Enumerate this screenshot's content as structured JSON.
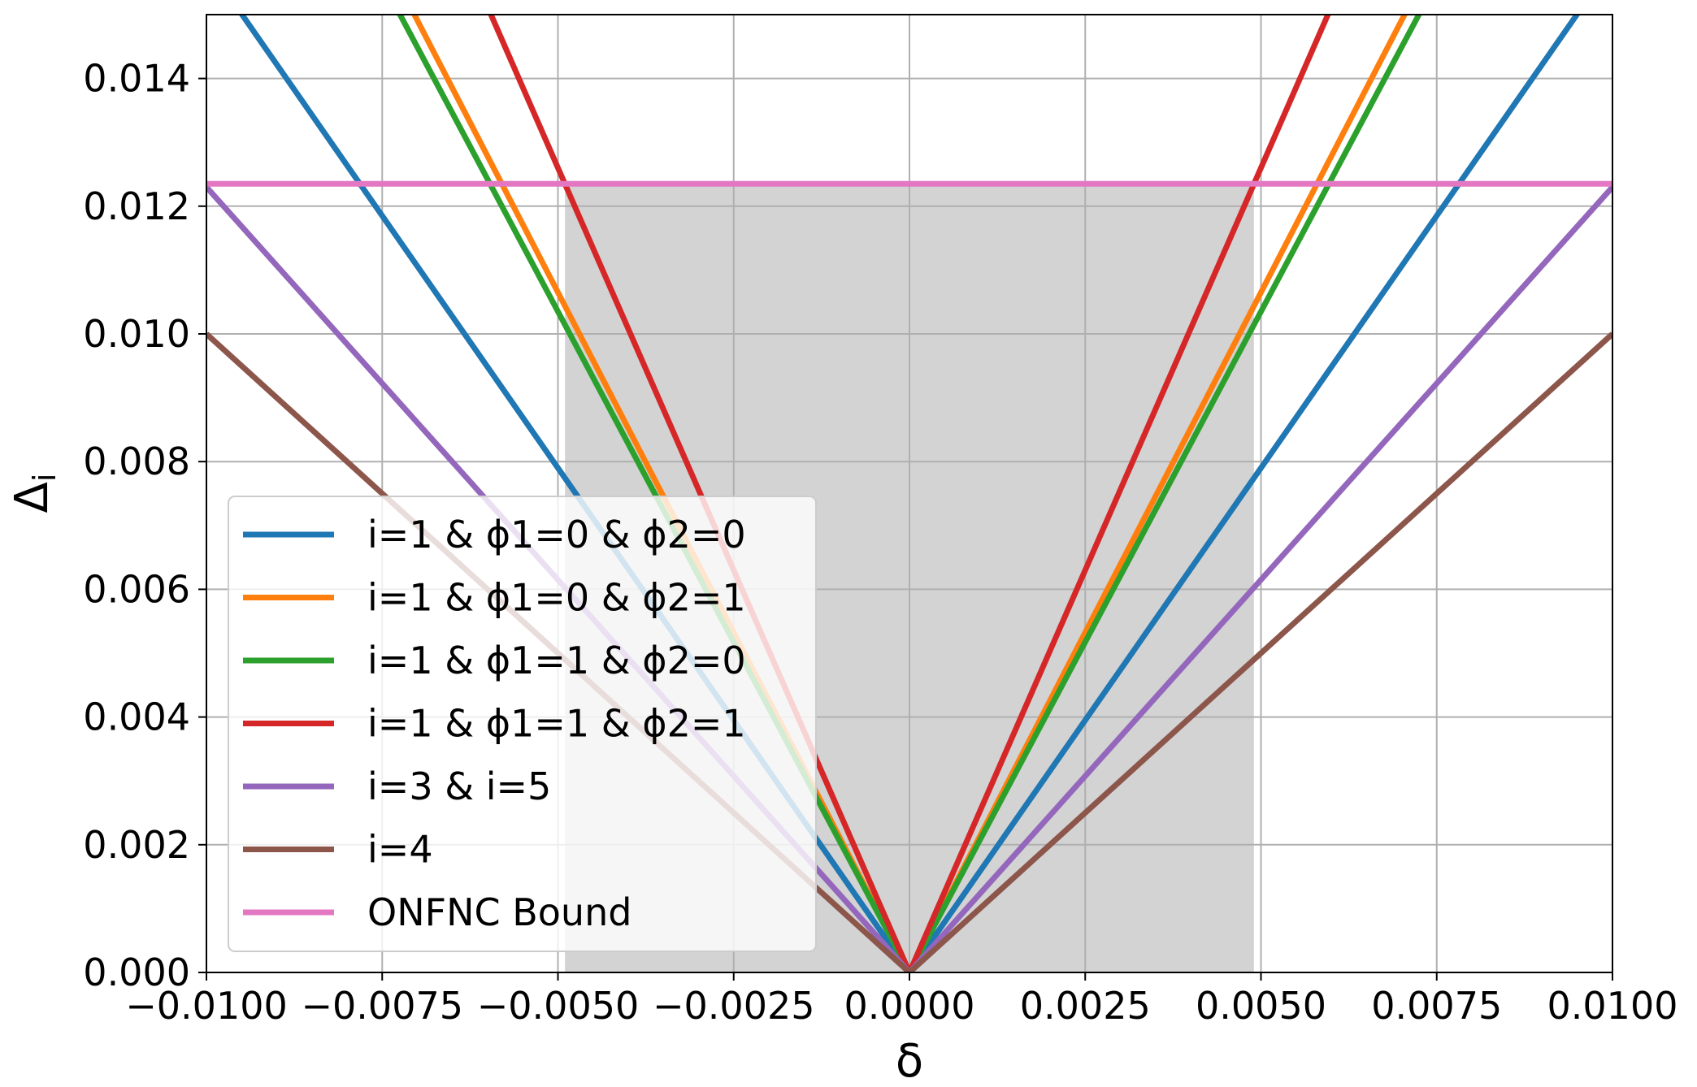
{
  "chart_data": {
    "type": "line",
    "xlabel": "δ",
    "ylabel_base": "Δ",
    "ylabel_sub": "i",
    "xlim": [
      -0.01,
      0.01
    ],
    "ylim": [
      0,
      0.015
    ],
    "grid": true,
    "legend_position": "lower-left",
    "x_ticks": [
      -0.01,
      -0.0075,
      -0.005,
      -0.0025,
      0.0,
      0.0025,
      0.005,
      0.0075,
      0.01
    ],
    "x_tick_labels": [
      "−0.0100",
      "−0.0075",
      "−0.0050",
      "−0.0025",
      "0.0000",
      "0.0025",
      "0.0050",
      "0.0075",
      "0.0100"
    ],
    "y_ticks": [
      0.0,
      0.002,
      0.004,
      0.006,
      0.008,
      0.01,
      0.012,
      0.014
    ],
    "y_tick_labels": [
      "0.000",
      "0.002",
      "0.004",
      "0.006",
      "0.008",
      "0.010",
      "0.012",
      "0.014"
    ],
    "shaded_region": {
      "x": [
        -0.0049,
        0.0049
      ],
      "y": [
        0,
        0.01235
      ],
      "color": "#d3d3d3"
    },
    "series": [
      {
        "name": "i=1 & ϕ1=0 & ϕ2=0",
        "color": "#1f77b4",
        "slope": 1.58
      },
      {
        "name": "i=1 & ϕ1=0 & ϕ2=1",
        "color": "#ff7f0e",
        "slope": 2.13
      },
      {
        "name": "i=1 & ϕ1=1 & ϕ2=0",
        "color": "#2ca02c",
        "slope": 2.07
      },
      {
        "name": "i=1 & ϕ1=1 & ϕ2=1",
        "color": "#d62728",
        "slope": 2.52
      },
      {
        "name": "i=3 & i=5",
        "color": "#9467bd",
        "slope": 1.23
      },
      {
        "name": "i=4",
        "color": "#8c564b",
        "slope": 1.0
      },
      {
        "name": "ONFNC Bound",
        "color": "#e377c2",
        "constant": 0.01235
      }
    ]
  }
}
